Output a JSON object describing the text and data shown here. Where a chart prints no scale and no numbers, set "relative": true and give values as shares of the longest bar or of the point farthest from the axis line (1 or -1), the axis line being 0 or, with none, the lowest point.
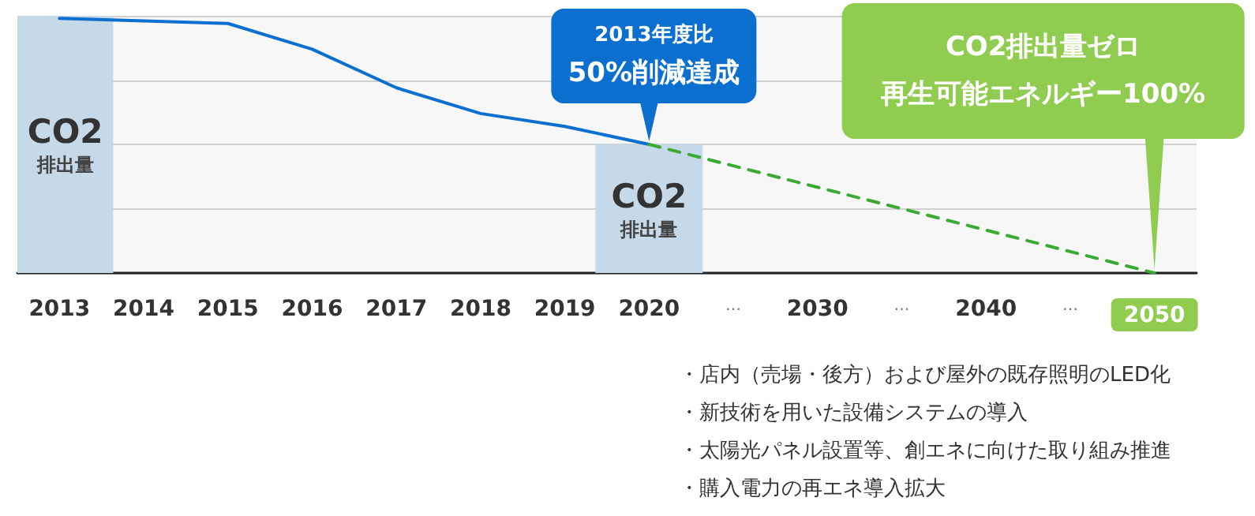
{
  "chart_data": {
    "type": "line",
    "relative": true,
    "grid": "y",
    "legend": false,
    "marker": "none",
    "categories": [
      "2013",
      "2014",
      "2015",
      "2016",
      "2017",
      "2018",
      "2019",
      "2020",
      "…",
      "2030",
      "…",
      "2040",
      "…",
      "2050"
    ],
    "series": [
      {
        "name": "CO2\n排出量",
        "type": "bar",
        "color": "#c5d9e8",
        "values": [
          1,
          null,
          null,
          null,
          null,
          null,
          null,
          0.5,
          null,
          null,
          null,
          null,
          null,
          null
        ]
      },
      {
        "type": "line",
        "color": "#0a6fcf",
        "line_style": "solid",
        "values": [
          0.99,
          0.98,
          0.97,
          0.87,
          0.72,
          0.62,
          0.57,
          0.5,
          null,
          null,
          null,
          null,
          null,
          null
        ]
      },
      {
        "color": "#3aaa35",
        "line_style": "dashed",
        "values": [
          null,
          null,
          null,
          null,
          null,
          null,
          null,
          0.5,
          null,
          null,
          null,
          null,
          null,
          0
        ]
      }
    ],
    "annotations": [
      "2013年度比",
      {
        "text": "50%削減達成",
        "x": "2020",
        "y": 0.5
      },
      "CO2排出量ゼロ",
      {
        "text": "再生可能エネルギー100%",
        "x": "2050",
        "y": 0
      },
      "・店内（売場・後方）および屋外の既存照明のLED化",
      "・新技術を用いた設備システムの導入",
      "・太陽光パネル設置等、創エネに向けた取り組み推進",
      "・購入電力の再エネ導入拡大"
    ]
  }
}
